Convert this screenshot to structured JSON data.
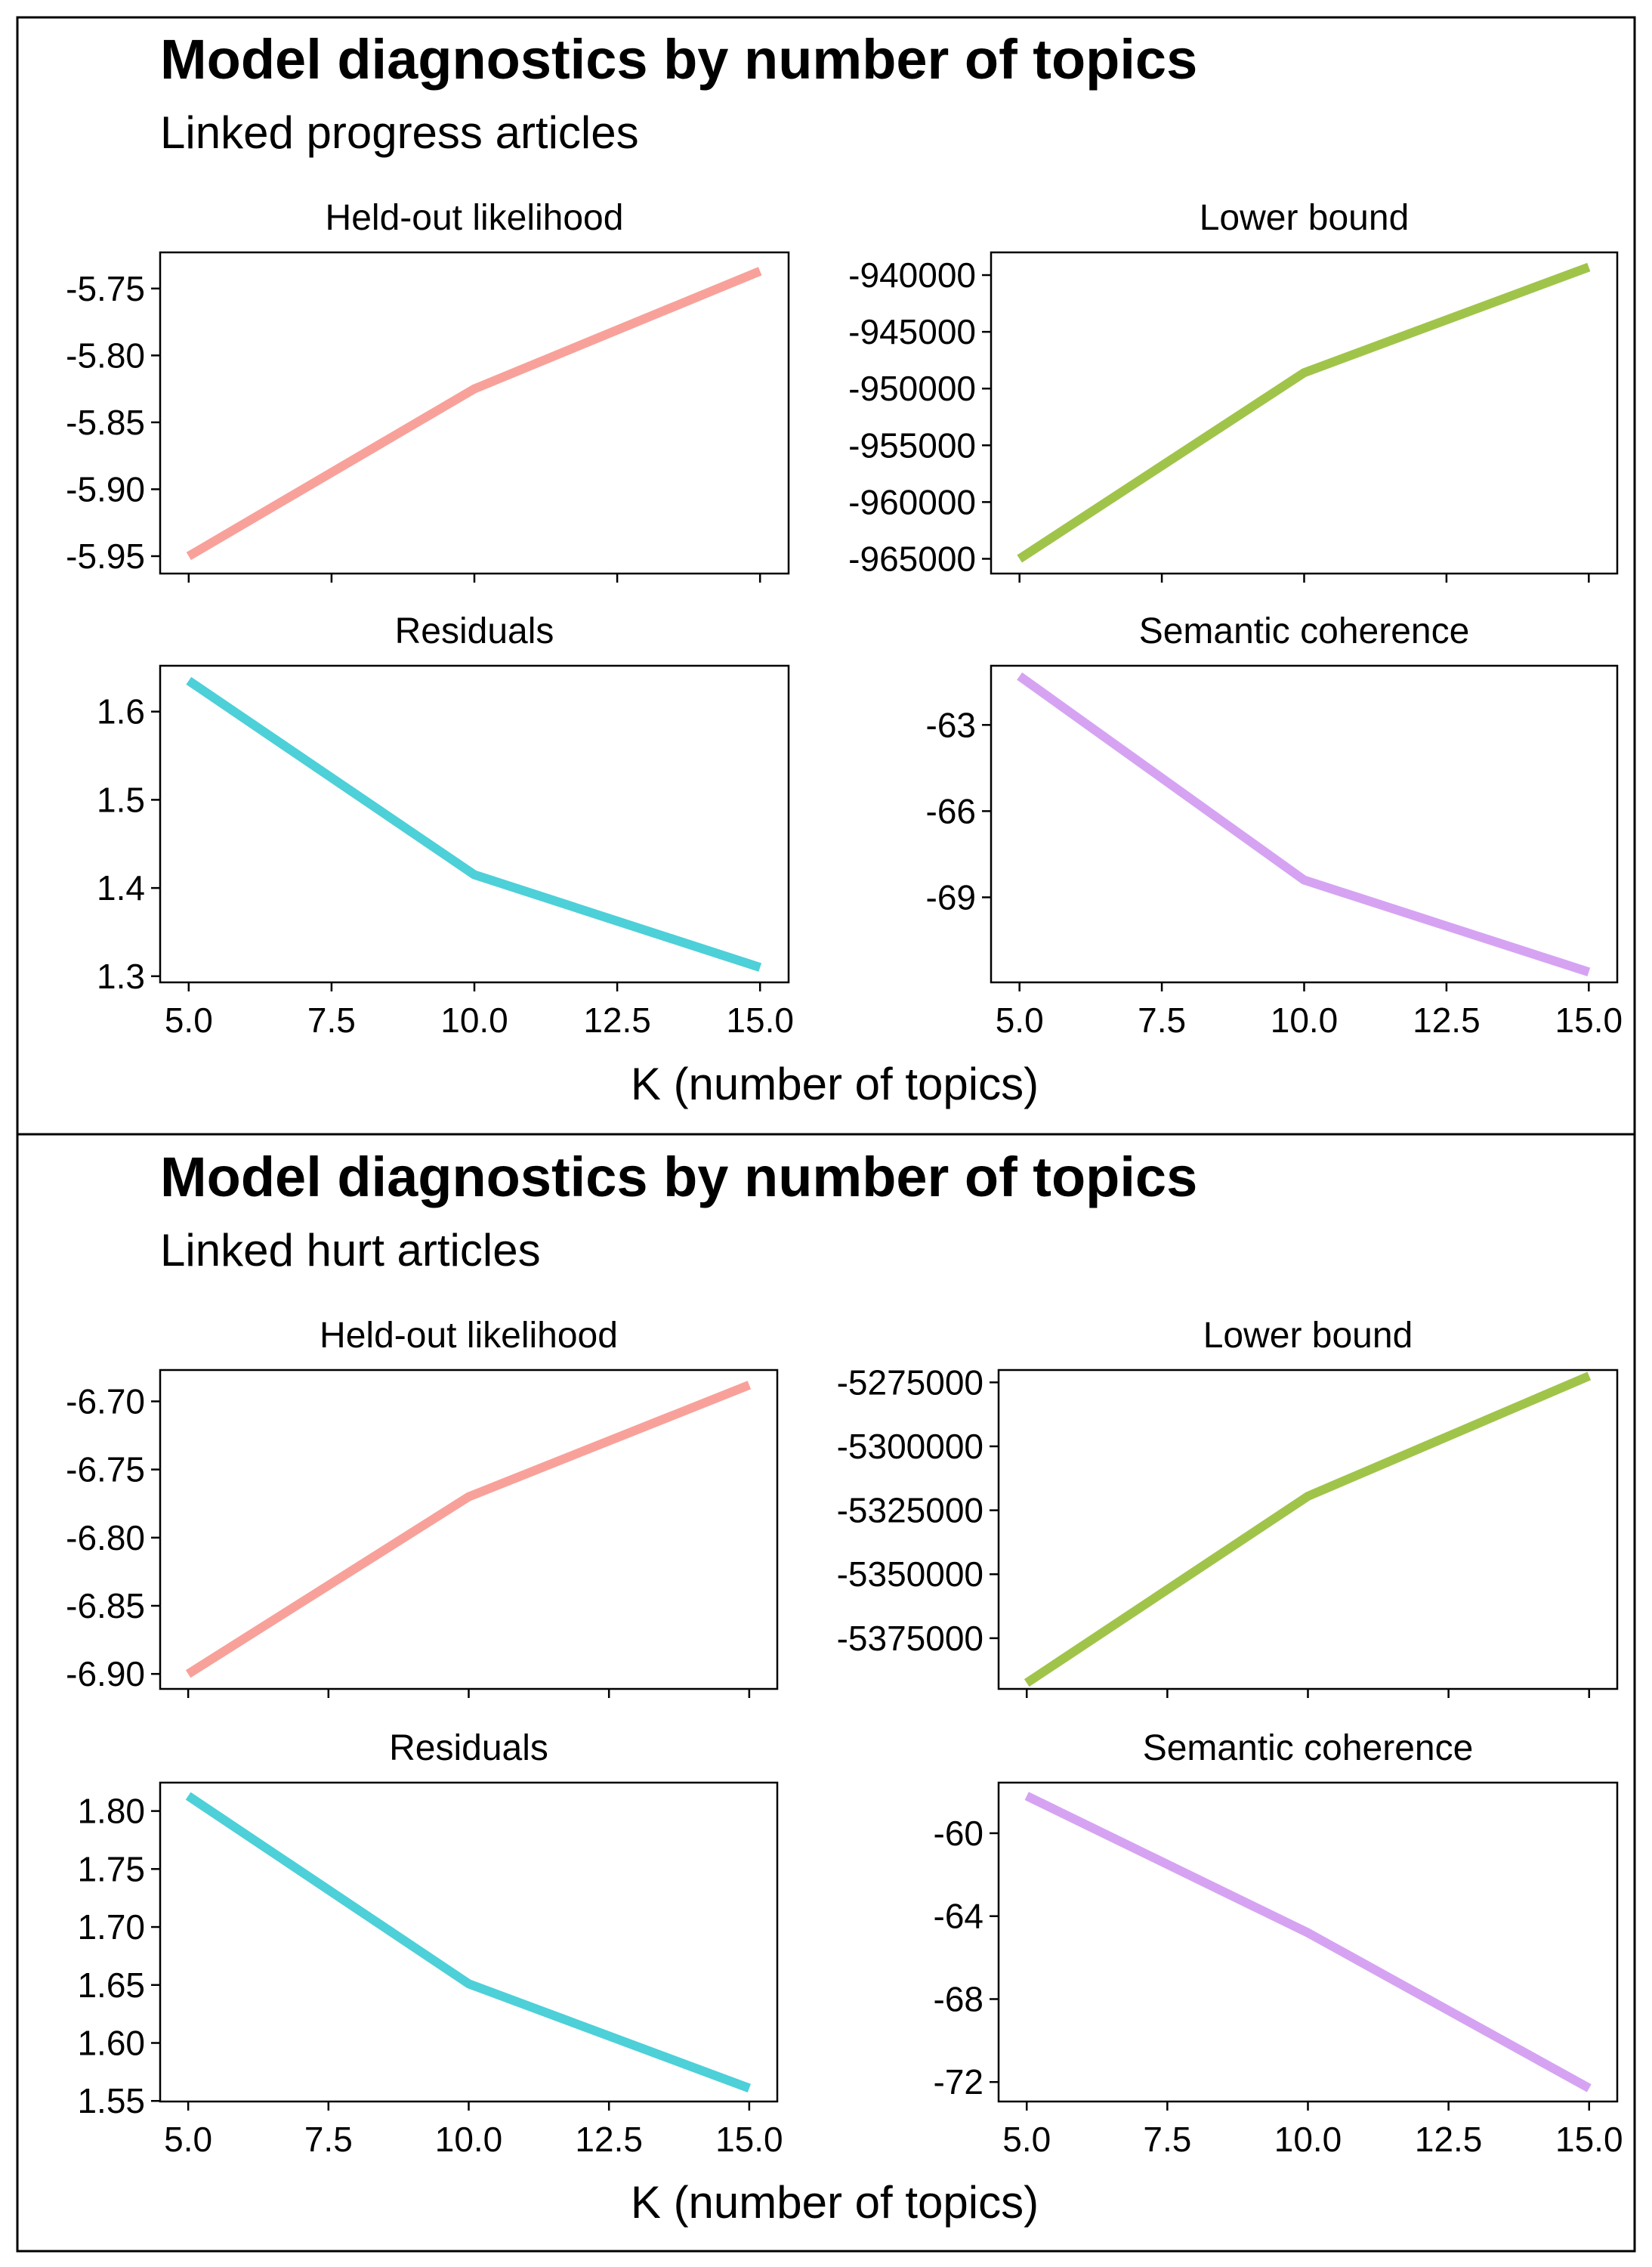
{
  "chart_data": [
    {
      "type": "line",
      "title": "Model diagnostics by number of topics",
      "subtitle": "Linked progress articles",
      "xlabel": "K (number of topics)",
      "ylabel": "",
      "xlim": [
        4.5,
        15.5
      ],
      "x_ticks": [
        "5.0",
        "7.5",
        "10.0",
        "12.5",
        "15.0"
      ],
      "panels": [
        {
          "title": "Held-out likelihood",
          "color": "#f8a19a",
          "x": [
            5,
            10,
            15
          ],
          "y": [
            -5.95,
            -5.825,
            -5.737
          ],
          "ylim": [
            -5.963,
            -5.723
          ],
          "y_ticks": [
            -5.95,
            -5.9,
            -5.85,
            -5.8,
            -5.75
          ],
          "y_tick_labels": [
            "-5.95",
            "-5.90",
            "-5.85",
            "-5.80",
            "-5.75"
          ]
        },
        {
          "title": "Lower bound",
          "color": "#a0c44a",
          "x": [
            5,
            10,
            15
          ],
          "y": [
            -965000,
            -948600,
            -939300
          ],
          "ylim": [
            -966300,
            -938000
          ],
          "y_ticks": [
            -965000,
            -960000,
            -955000,
            -950000,
            -945000,
            -940000
          ],
          "y_tick_labels": [
            "-965000",
            "-960000",
            "-955000",
            "-950000",
            "-945000",
            "-940000"
          ]
        },
        {
          "title": "Residuals",
          "color": "#4dd0d8",
          "x": [
            5,
            10,
            15
          ],
          "y": [
            1.635,
            1.415,
            1.31
          ],
          "ylim": [
            1.293,
            1.652
          ],
          "y_ticks": [
            1.3,
            1.4,
            1.5,
            1.6
          ],
          "y_tick_labels": [
            "1.3",
            "1.4",
            "1.5",
            "1.6"
          ]
        },
        {
          "title": "Semantic coherence",
          "color": "#d6a3f2",
          "x": [
            5,
            10,
            15
          ],
          "y": [
            -61.3,
            -68.4,
            -71.6
          ],
          "ylim": [
            -71.96,
            -60.94
          ],
          "y_ticks": [
            -69,
            -66,
            -63
          ],
          "y_tick_labels": [
            "-69",
            "-66",
            "-63"
          ]
        }
      ]
    },
    {
      "type": "line",
      "title": "Model diagnostics by number of topics",
      "subtitle": "Linked hurt articles",
      "xlabel": "K (number of topics)",
      "ylabel": "",
      "xlim": [
        4.5,
        15.5
      ],
      "x_ticks": [
        "5.0",
        "7.5",
        "10.0",
        "12.5",
        "15.0"
      ],
      "panels": [
        {
          "title": "Held-out likelihood",
          "color": "#f8a19a",
          "x": [
            5,
            10,
            15
          ],
          "y": [
            -6.9,
            -6.77,
            -6.688
          ],
          "ylim": [
            -6.911,
            -6.677
          ],
          "y_ticks": [
            -6.9,
            -6.85,
            -6.8,
            -6.75,
            -6.7
          ],
          "y_tick_labels": [
            "-6.90",
            "-6.85",
            "-6.80",
            "-6.75",
            "-6.70"
          ]
        },
        {
          "title": "Lower bound",
          "color": "#a0c44a",
          "x": [
            5,
            10,
            15
          ],
          "y": [
            -5392500,
            -5319500,
            -5272500
          ],
          "ylim": [
            -5394830,
            -5270170
          ],
          "y_ticks": [
            -5375000,
            -5350000,
            -5325000,
            -5300000,
            -5275000
          ],
          "y_tick_labels": [
            "-5375000",
            "-5350000",
            "-5325000",
            "-5300000",
            "-5275000"
          ]
        },
        {
          "title": "Residuals",
          "color": "#4dd0d8",
          "x": [
            5,
            10,
            15
          ],
          "y": [
            1.813,
            1.651,
            1.561
          ],
          "ylim": [
            1.5495,
            1.8245
          ],
          "y_ticks": [
            1.55,
            1.6,
            1.65,
            1.7,
            1.75,
            1.8
          ],
          "y_tick_labels": [
            "1.55",
            "1.60",
            "1.65",
            "1.70",
            "1.75",
            "1.80"
          ]
        },
        {
          "title": "Semantic coherence",
          "color": "#d6a3f2",
          "x": [
            5,
            10,
            15
          ],
          "y": [
            -58.2,
            -64.8,
            -72.3
          ],
          "ylim": [
            -72.94,
            -57.56
          ],
          "y_ticks": [
            -72,
            -68,
            -64,
            -60
          ],
          "y_tick_labels": [
            "-72",
            "-68",
            "-64",
            "-60"
          ]
        }
      ]
    }
  ]
}
